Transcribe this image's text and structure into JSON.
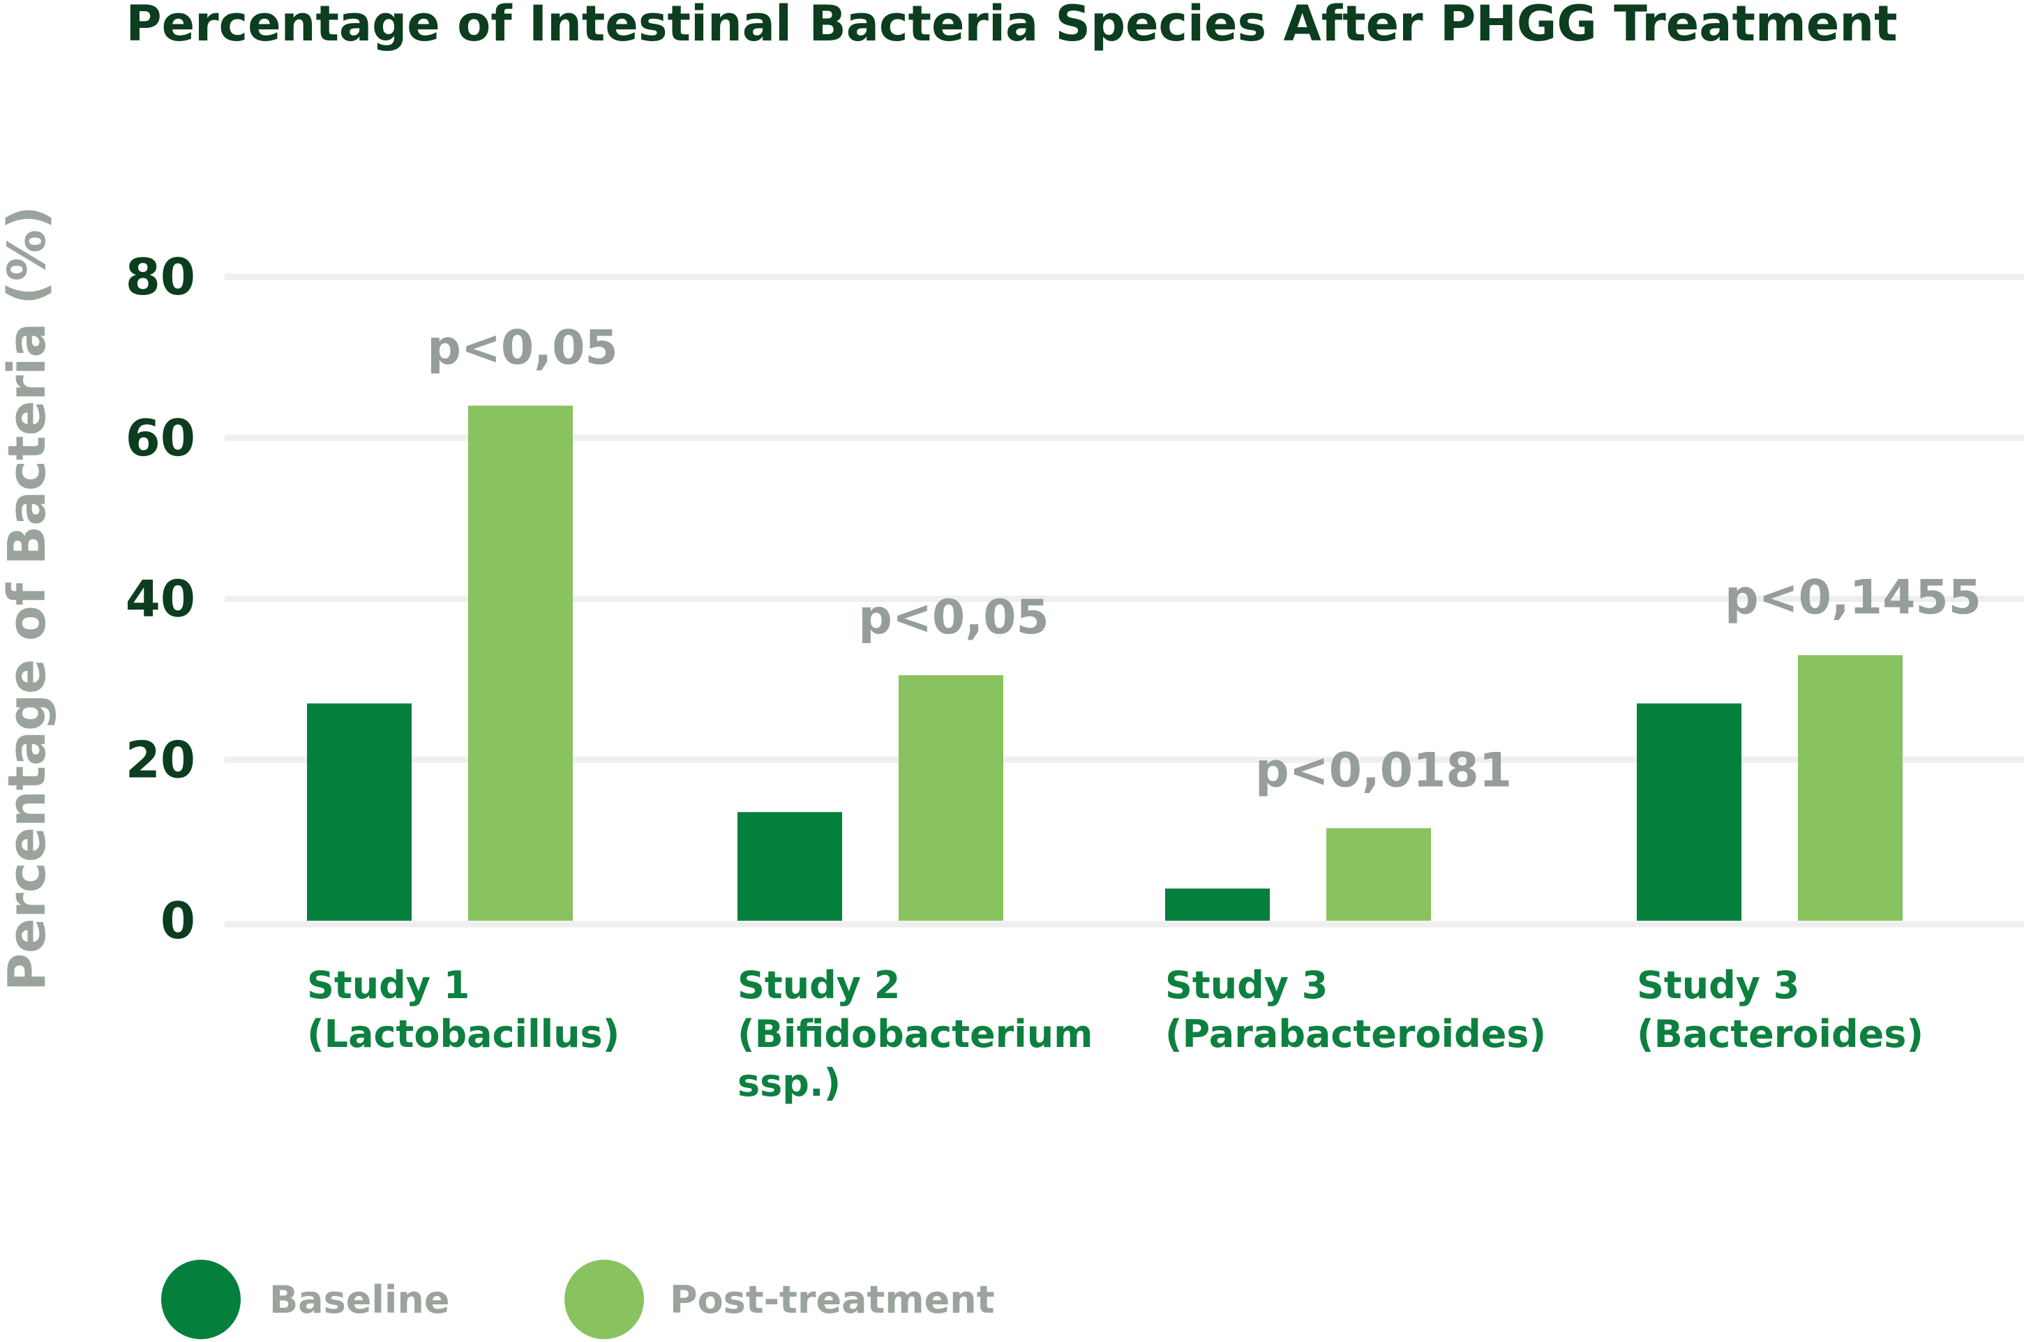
{
  "chart_data": {
    "type": "bar",
    "title": "Percentage of Intestinal Bacteria Species After PHGG Treatment",
    "ylabel": "Percentage of Bacteria (%)",
    "xlabel": "",
    "ylim": [
      0,
      80
    ],
    "yticks": [
      "0",
      "20",
      "40",
      "60",
      "80"
    ],
    "grid": true,
    "legend_position": "bottom-left",
    "categories": [
      [
        "Study 1",
        "(Lactobacillus)"
      ],
      [
        "Study 2",
        "(Bifidobacterium",
        "ssp.)"
      ],
      [
        "Study 3",
        "(Parabacteroides)"
      ],
      [
        "Study 3",
        "(Bacteroides)"
      ]
    ],
    "series": [
      {
        "name": "Baseline",
        "color": "#047f3c",
        "values": [
          27,
          13.5,
          4,
          27
        ]
      },
      {
        "name": "Post-treatment",
        "color": "#88c35f",
        "values": [
          64,
          30.5,
          11.5,
          33
        ]
      }
    ],
    "annotations": [
      "p<0,05",
      "p<0,05",
      "p<0,0181",
      "p<0,1455"
    ]
  }
}
